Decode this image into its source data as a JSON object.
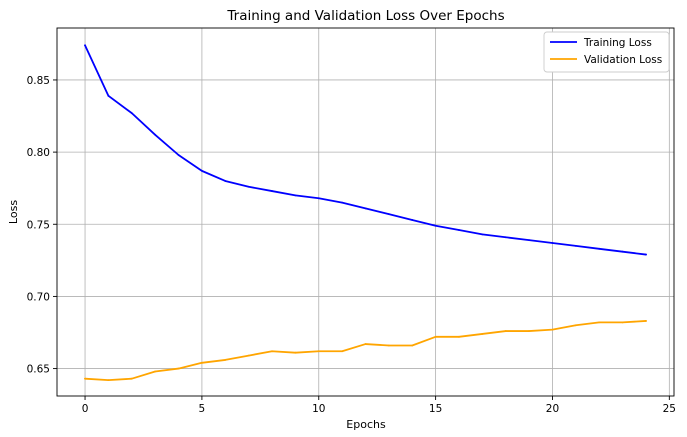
{
  "chart_data": {
    "type": "line",
    "title": "Training and Validation Loss Over Epochs",
    "xlabel": "Epochs",
    "ylabel": "Loss",
    "xlim": [
      -1.2,
      25.2
    ],
    "ylim": [
      0.631,
      0.886
    ],
    "xticks": [
      0,
      5,
      10,
      15,
      20,
      25
    ],
    "yticks": [
      0.65,
      0.7,
      0.75,
      0.8,
      0.85
    ],
    "ytick_labels": [
      "0.65",
      "0.70",
      "0.75",
      "0.80",
      "0.85"
    ],
    "grid": true,
    "legend_position": "top-right",
    "x": [
      0,
      1,
      2,
      3,
      4,
      5,
      6,
      7,
      8,
      9,
      10,
      11,
      12,
      13,
      14,
      15,
      16,
      17,
      18,
      19,
      20,
      21,
      22,
      23,
      24
    ],
    "series": [
      {
        "name": "Training Loss",
        "color": "#0000ff",
        "values": [
          0.874,
          0.839,
          0.827,
          0.812,
          0.798,
          0.787,
          0.78,
          0.776,
          0.773,
          0.77,
          0.768,
          0.765,
          0.761,
          0.757,
          0.753,
          0.749,
          0.746,
          0.743,
          0.741,
          0.739,
          0.737,
          0.735,
          0.733,
          0.731,
          0.729
        ]
      },
      {
        "name": "Validation Loss",
        "color": "#ffa500",
        "values": [
          0.643,
          0.642,
          0.643,
          0.648,
          0.65,
          0.654,
          0.656,
          0.659,
          0.662,
          0.661,
          0.662,
          0.662,
          0.667,
          0.666,
          0.666,
          0.672,
          0.672,
          0.674,
          0.676,
          0.676,
          0.677,
          0.68,
          0.682,
          0.682,
          0.683
        ]
      }
    ]
  }
}
